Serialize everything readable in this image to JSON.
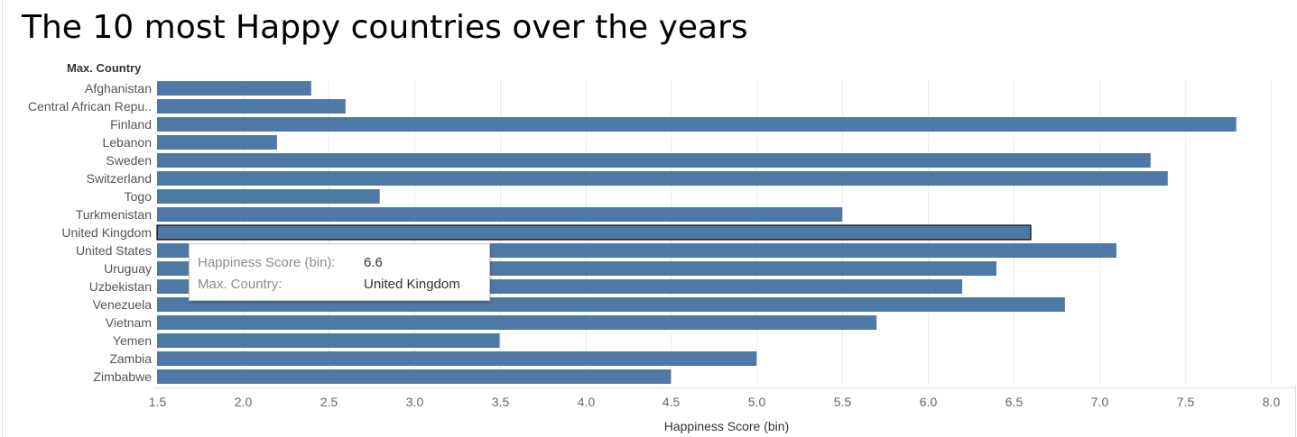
{
  "title": "The 10 most Happy countries over the years",
  "chart_data": {
    "type": "bar",
    "orientation": "horizontal",
    "row_header": "Max. Country",
    "categories": [
      "Afghanistan",
      "Central African Repu..",
      "Finland",
      "Lebanon",
      "Sweden",
      "Switzerland",
      "Togo",
      "Turkmenistan",
      "United Kingdom",
      "United States",
      "Uruguay",
      "Uzbekistan",
      "Venezuela",
      "Vietnam",
      "Yemen",
      "Zambia",
      "Zimbabwe"
    ],
    "values": [
      2.4,
      2.6,
      7.8,
      2.2,
      7.3,
      7.4,
      2.8,
      5.5,
      6.6,
      7.1,
      6.4,
      6.2,
      6.8,
      5.7,
      3.5,
      5.0,
      4.5
    ],
    "xlabel": "Happiness Score (bin)",
    "xlim": [
      1.5,
      8.0
    ],
    "xticks": [
      "1.5",
      "2.0",
      "2.5",
      "3.0",
      "3.5",
      "4.0",
      "4.5",
      "5.0",
      "5.5",
      "6.0",
      "6.5",
      "7.0",
      "7.5",
      "8.0"
    ],
    "bar_color": "#4e79a7",
    "highlight_index": 8,
    "grid": "vertical"
  },
  "tooltip": {
    "score_label": "Happiness Score (bin):",
    "score_value": "6.6",
    "country_label": "Max. Country:",
    "country_value": "United Kingdom"
  }
}
